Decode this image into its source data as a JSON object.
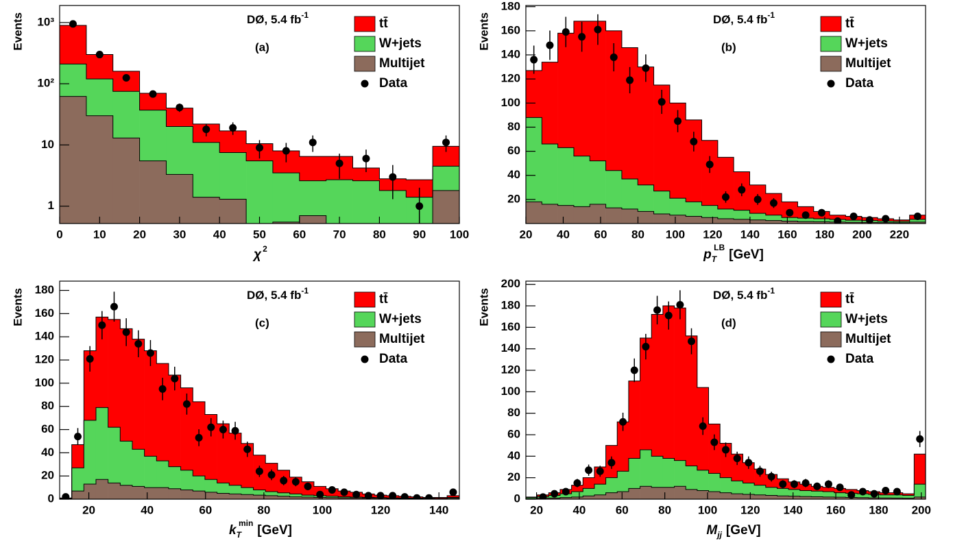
{
  "chart_data": [
    {
      "type": "histogram",
      "label": "(a)",
      "annotation": {
        "text": "DØ, 5.4 fb",
        "sup": "-1"
      },
      "ylabel": "Events",
      "xlabel": {
        "symbol": "χ",
        "sup": "2"
      },
      "log_y": true,
      "xlim": [
        0,
        100
      ],
      "xticks": [
        0,
        10,
        20,
        30,
        40,
        50,
        60,
        70,
        80,
        90,
        100
      ],
      "ylim": [
        0.52,
        1900
      ],
      "yticks": [
        1,
        10,
        {
          "value": 100,
          "label": "10²"
        },
        {
          "value": 1000,
          "label": "10³"
        }
      ],
      "bins": [
        0,
        6.67,
        13.33,
        20,
        26.67,
        33.33,
        40,
        46.67,
        53.33,
        60,
        66.67,
        73.33,
        80,
        86.67,
        93.33,
        100
      ],
      "series": [
        {
          "name": "tt̄",
          "color": "#ff0000",
          "stacked": true,
          "values": [
            690,
            180,
            85,
            33,
            20,
            11,
            9.5,
            5,
            4.5,
            3.9,
            3.8,
            1.6,
            1,
            1.3,
            5
          ]
        },
        {
          "name": "W+jets",
          "color": "#55d65a",
          "stacked": true,
          "values": [
            148,
            90,
            62,
            31.5,
            16.7,
            9.6,
            6.2,
            5.05,
            2.95,
            1.9,
            2.25,
            2.15,
            1.35,
            0.95,
            2.7
          ]
        },
        {
          "name": "Multijet",
          "color": "#8c6b5c",
          "stacked": true,
          "values": [
            62,
            30,
            13,
            5.5,
            3.3,
            1.4,
            1.3,
            0.45,
            0.55,
            0.7,
            0.45,
            0.45,
            0.45,
            0.45,
            1.8
          ]
        },
        {
          "name": "Data",
          "color": "#000000",
          "values": [
            950,
            300,
            125,
            68,
            41,
            18,
            19,
            9,
            8,
            11,
            5,
            6,
            3,
            1,
            11
          ],
          "errors": [
            31,
            17,
            11,
            8,
            6.4,
            4.2,
            4.4,
            3,
            2.8,
            3.3,
            2.2,
            2.4,
            1.7,
            1,
            3.3
          ]
        }
      ]
    },
    {
      "type": "histogram",
      "label": "(b)",
      "annotation": {
        "text": "DØ, 5.4 fb",
        "sup": "-1"
      },
      "ylabel": "Events",
      "xlabel": {
        "symbol": "p",
        "sub": "T",
        "sup": "LB",
        "unit": "[GeV]"
      },
      "xlim": [
        20,
        234
      ],
      "xticks": [
        20,
        40,
        60,
        80,
        100,
        120,
        140,
        160,
        180,
        200,
        220
      ],
      "ylim": [
        0,
        181
      ],
      "yticks": [
        20,
        40,
        60,
        80,
        100,
        120,
        140,
        160,
        180
      ],
      "bins": [
        20,
        28.56,
        37.12,
        45.68,
        54.24,
        62.8,
        71.36,
        79.92,
        88.48,
        97.04,
        105.6,
        114.16,
        122.72,
        131.28,
        139.84,
        148.4,
        156.96,
        165.52,
        174.08,
        182.64,
        191.2,
        199.76,
        208.32,
        216.88,
        225.44,
        234
      ],
      "series": [
        {
          "name": "tt̄",
          "color": "#ff0000",
          "stacked": true,
          "values": [
            39,
            68,
            95,
            112,
            116,
            116,
            109,
            98,
            88,
            79,
            68,
            54,
            43,
            32,
            23.5,
            18,
            13,
            9.5,
            6,
            3.6,
            3.2,
            2.5,
            2,
            1.2,
            3.5
          ]
        },
        {
          "name": "W+jets",
          "color": "#55d65a",
          "stacked": true,
          "values": [
            70,
            50,
            48,
            42,
            36,
            31,
            25,
            22,
            19,
            14,
            12,
            10,
            8,
            7.5,
            5.5,
            4.5,
            3,
            2.9,
            2.6,
            2.2,
            1.8,
            1.6,
            1.2,
            1.1,
            2.3
          ]
        },
        {
          "name": "Multijet",
          "color": "#8c6b5c",
          "stacked": true,
          "values": [
            18,
            16,
            15,
            14,
            16,
            13,
            12,
            10,
            8,
            7,
            6,
            5,
            4,
            3.5,
            3,
            2.5,
            2,
            1.6,
            1.4,
            1.2,
            1,
            0.9,
            0.8,
            0.7,
            1.2
          ]
        },
        {
          "name": "Data",
          "color": "#000000",
          "values": [
            136,
            148,
            159,
            155,
            161,
            138,
            119,
            129,
            101,
            85,
            68,
            49,
            22,
            28,
            20,
            17,
            9,
            7,
            9,
            2,
            6,
            3,
            4,
            null,
            6
          ],
          "errors": [
            11.7,
            12.2,
            12.6,
            12.4,
            12.7,
            11.7,
            10.9,
            11.4,
            10,
            9.2,
            8.2,
            7,
            4.7,
            5.3,
            4.5,
            4.1,
            3,
            2.6,
            3,
            1.4,
            2.4,
            1.7,
            2,
            null,
            2.4
          ]
        }
      ]
    },
    {
      "type": "histogram",
      "label": "(c)",
      "annotation": {
        "text": "DØ, 5.4 fb",
        "sup": "-1"
      },
      "ylabel": "Events",
      "xlabel": {
        "symbol": "k",
        "sub": "T",
        "sup": "min",
        "unit": "[GeV]"
      },
      "xlim": [
        10,
        147
      ],
      "xticks": [
        20,
        40,
        60,
        80,
        100,
        120,
        140
      ],
      "ylim": [
        0,
        188
      ],
      "yticks": [
        0,
        20,
        40,
        60,
        80,
        100,
        120,
        140,
        160,
        180
      ],
      "bins": [
        10,
        14.15,
        18.3,
        22.45,
        26.6,
        30.75,
        34.9,
        39.05,
        43.2,
        47.35,
        51.5,
        55.65,
        59.8,
        63.95,
        68.1,
        72.25,
        76.4,
        80.55,
        84.7,
        88.85,
        93,
        97.15,
        101.3,
        105.45,
        109.6,
        113.75,
        117.9,
        122.05,
        126.2,
        130.35,
        134.5,
        138.65,
        142.8,
        146.95
      ],
      "series": [
        {
          "name": "tt̄",
          "color": "#ff0000",
          "stacked": true,
          "values": [
            0.5,
            20,
            60,
            78,
            93,
            97,
            95,
            91,
            84,
            79,
            71,
            64,
            56,
            51,
            45,
            38,
            30,
            24.5,
            19.5,
            14.5,
            11.5,
            8,
            6.5,
            5,
            4.2,
            3,
            2.2,
            1.9,
            1.5,
            1.1,
            0.7,
            0.8,
            1.5
          ]
        },
        {
          "name": "W+jets",
          "color": "#55d65a",
          "stacked": true,
          "values": [
            0.3,
            20,
            55,
            62,
            48,
            38,
            32,
            27,
            23,
            19,
            17,
            13,
            11,
            9,
            7.5,
            6,
            4.5,
            3.5,
            3,
            2.5,
            1.7,
            1.5,
            1.2,
            0.9,
            0.8,
            0.6,
            0.5,
            0.4,
            0.4,
            0.4,
            0.3,
            0.3,
            0.7
          ]
        },
        {
          "name": "Multijet",
          "color": "#8c6b5c",
          "stacked": true,
          "values": [
            0.2,
            7,
            13,
            17,
            14,
            12,
            11,
            10,
            10,
            9,
            8,
            7,
            6,
            5,
            4.5,
            4,
            3.5,
            3,
            2.5,
            2,
            1.8,
            1.5,
            1.3,
            1.1,
            1,
            0.9,
            0.8,
            0.7,
            0.6,
            0.5,
            0.5,
            0.4,
            0.8
          ]
        },
        {
          "name": "Data",
          "color": "#000000",
          "values": [
            2,
            54,
            121,
            150,
            166,
            144,
            134,
            126,
            95,
            104,
            82,
            53,
            62,
            60,
            59,
            43,
            24,
            21,
            16,
            15,
            11,
            4,
            8,
            6,
            4,
            3,
            3,
            3,
            2,
            1,
            1,
            null,
            6
          ],
          "errors": [
            1.4,
            7.3,
            11,
            12.2,
            12.9,
            12,
            11.6,
            11.2,
            9.7,
            10.2,
            9.1,
            7.3,
            7.9,
            7.7,
            7.7,
            6.6,
            4.9,
            4.6,
            4,
            3.9,
            3.3,
            2,
            2.8,
            2.4,
            2,
            1.7,
            1.7,
            1.7,
            1.4,
            1,
            1,
            null,
            2.4
          ]
        }
      ]
    },
    {
      "type": "histogram",
      "label": "(d)",
      "annotation": {
        "text": "DØ, 5.4 fb",
        "sup": "-1"
      },
      "ylabel": "Events",
      "xlabel": {
        "symbol": "M",
        "sub": "jj",
        "unit": "[GeV]"
      },
      "xlim": [
        15,
        202
      ],
      "xticks": [
        20,
        40,
        60,
        80,
        100,
        120,
        140,
        160,
        180,
        200
      ],
      "ylim": [
        0,
        203
      ],
      "yticks": [
        0,
        20,
        40,
        60,
        80,
        100,
        120,
        140,
        160,
        180,
        200
      ],
      "bins": [
        15,
        20.34,
        25.69,
        31.03,
        36.37,
        41.71,
        47.06,
        52.4,
        57.74,
        63.09,
        68.43,
        73.77,
        79.12,
        84.46,
        89.8,
        95.14,
        100.49,
        105.83,
        111.17,
        116.52,
        121.86,
        127.2,
        132.55,
        137.89,
        143.23,
        148.57,
        153.92,
        159.26,
        164.6,
        169.95,
        175.29,
        180.63,
        185.98,
        191.32,
        196.66,
        202
      ],
      "series": [
        {
          "name": "tt̄",
          "color": "#ff0000",
          "stacked": true,
          "values": [
            0.5,
            1.5,
            2.5,
            4,
            6,
            10,
            16,
            30,
            46,
            72,
            104,
            132,
            142,
            142,
            121,
            77,
            46,
            32,
            25,
            19,
            15,
            12,
            9,
            7,
            6,
            4.5,
            4,
            4,
            3.5,
            3,
            2.5,
            2,
            2,
            1.5,
            28
          ]
        },
        {
          "name": "W+jets",
          "color": "#55d65a",
          "stacked": true,
          "values": [
            1,
            1.5,
            2.5,
            3.5,
            5,
            7,
            10,
            14,
            19,
            28,
            34,
            29,
            27,
            24,
            22,
            19,
            17,
            14,
            12,
            10.5,
            9,
            7.5,
            7,
            6.2,
            5.5,
            5.3,
            5,
            4.2,
            3.9,
            3.6,
            3.3,
            2.9,
            3,
            2.6,
            12
          ]
        },
        {
          "name": "Multijet",
          "color": "#8c6b5c",
          "stacked": true,
          "values": [
            0.5,
            1,
            1,
            1.5,
            2,
            3,
            4,
            6,
            7,
            10,
            12,
            11,
            11,
            12,
            9,
            8,
            7,
            6,
            5,
            4.5,
            4,
            3.5,
            3,
            2.8,
            2.5,
            2.2,
            2,
            1.8,
            1.6,
            1.4,
            1.2,
            1.1,
            1,
            0.9,
            2
          ]
        },
        {
          "name": "Data",
          "color": "#000000",
          "values": [
            null,
            2,
            5,
            7,
            15,
            27,
            26,
            34,
            72,
            120,
            142,
            176,
            171,
            181,
            147,
            68,
            53,
            46,
            38,
            34,
            26,
            21,
            14,
            14,
            15,
            12,
            14,
            11,
            4,
            7,
            5,
            8,
            7,
            null,
            56
          ],
          "errors": [
            null,
            1.4,
            2.2,
            2.6,
            3.9,
            5.2,
            5.1,
            5.8,
            8.5,
            11,
            11.9,
            13.3,
            13.1,
            13.5,
            12.1,
            8.2,
            7.3,
            6.8,
            6.2,
            5.8,
            5.1,
            4.6,
            3.7,
            3.7,
            3.9,
            3.5,
            3.7,
            3.3,
            2,
            2.6,
            2.2,
            2.8,
            2.6,
            null,
            7.5
          ]
        }
      ]
    }
  ]
}
